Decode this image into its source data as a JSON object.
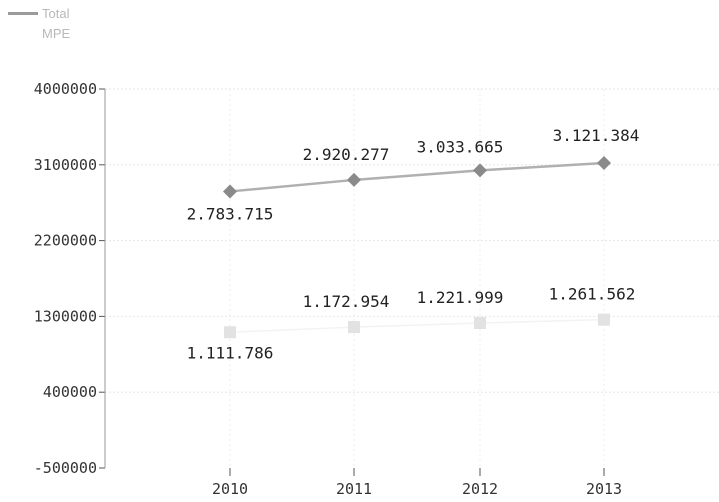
{
  "legend": [
    {
      "label": "Total",
      "color": "#9a9a9a"
    },
    {
      "label": "MPE",
      "color": "#dcdcdc"
    }
  ],
  "chart_data": {
    "type": "line",
    "x": [
      "2010",
      "2011",
      "2012",
      "2013"
    ],
    "series": [
      {
        "name": "Total",
        "values": [
          2783715,
          2920277,
          3033665,
          3121384
        ],
        "labels": [
          "2.783.715",
          "2.920.277",
          "3.033.665",
          "3.121.384"
        ],
        "color": "#8a8a8a",
        "marker": "diamond"
      },
      {
        "name": "MPE",
        "values": [
          1111786,
          1172954,
          1221999,
          1261562
        ],
        "labels": [
          "1.111.786",
          "1.172.954",
          "1.221.999",
          "1.261.562"
        ],
        "color": "#e2e2e2",
        "marker": "square"
      }
    ],
    "yticks": [
      4000000,
      3100000,
      2200000,
      1300000,
      400000,
      -500000
    ],
    "ytick_labels": [
      "4000000",
      "3100000",
      "2200000",
      "1300000",
      "400000",
      "-500000"
    ],
    "ylim": [
      -500000,
      4000000
    ],
    "grid": true,
    "legend_position": "top-left"
  }
}
